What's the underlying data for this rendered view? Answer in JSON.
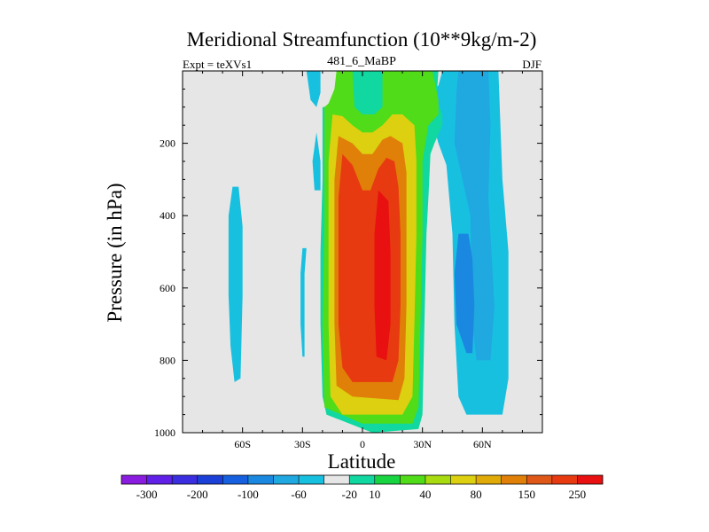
{
  "chart_data": {
    "type": "heatmap",
    "title": "Meridional Streamfunction (10**9kg/m-2)",
    "left_label": "Expt = teXVs1",
    "center_label": "481_6_MaBP",
    "right_label": "DJF",
    "xlabel": "Latitude",
    "ylabel": "Pressure (in hPa)",
    "xlim": [
      -90,
      90
    ],
    "ylim": [
      1000,
      0
    ],
    "x_ticks": [
      {
        "value": -60,
        "label": "60S"
      },
      {
        "value": -30,
        "label": "30S"
      },
      {
        "value": 0,
        "label": "0"
      },
      {
        "value": 30,
        "label": "30N"
      },
      {
        "value": 60,
        "label": "60N"
      }
    ],
    "y_ticks": [
      {
        "value": 200,
        "label": "200"
      },
      {
        "value": 400,
        "label": "400"
      },
      {
        "value": 600,
        "label": "600"
      },
      {
        "value": 800,
        "label": "800"
      },
      {
        "value": 1000,
        "label": "1000"
      }
    ],
    "colorbar": {
      "labels": [
        "-300",
        "-200",
        "-100",
        "-60",
        "-20",
        "10",
        "40",
        "80",
        "150",
        "250"
      ],
      "colors": [
        "#8a1ce0",
        "#6020e8",
        "#3a2ee0",
        "#1a40d8",
        "#1660e0",
        "#1a88e0",
        "#20a8e0",
        "#18c0e0",
        "#e6e6e6",
        "#10d8a0",
        "#18d440",
        "#50dc18",
        "#a8dc10",
        "#dcd010",
        "#e0aa08",
        "#e08008",
        "#e05818",
        "#e83a10",
        "#e81010"
      ]
    },
    "regions": [
      {
        "level": "-20",
        "polygon": [
          [
            30,
            90
          ],
          [
            35,
            140
          ],
          [
            38,
            200
          ],
          [
            42,
            260
          ],
          [
            45,
            450
          ],
          [
            46,
            700
          ],
          [
            48,
            900
          ],
          [
            52,
            950
          ],
          [
            70,
            950
          ],
          [
            73,
            850
          ],
          [
            73,
            500
          ],
          [
            70,
            300
          ],
          [
            68,
            0
          ],
          [
            40,
            0
          ],
          [
            38,
            40
          ]
        ]
      },
      {
        "level": "-60",
        "polygon": [
          [
            47,
            60
          ],
          [
            46,
            200
          ],
          [
            50,
            300
          ],
          [
            54,
            400
          ],
          [
            55,
            700
          ],
          [
            57,
            800
          ],
          [
            64,
            800
          ],
          [
            66,
            650
          ],
          [
            63,
            350
          ],
          [
            64,
            150
          ],
          [
            63,
            0
          ],
          [
            48,
            0
          ]
        ]
      },
      {
        "level": "-100",
        "polygon": [
          [
            48,
            450
          ],
          [
            46,
            560
          ],
          [
            47,
            700
          ],
          [
            52,
            780
          ],
          [
            55,
            780
          ],
          [
            56,
            650
          ],
          [
            55,
            520
          ],
          [
            53,
            450
          ]
        ]
      },
      {
        "level": "-20",
        "polygon": [
          [
            -65,
            320
          ],
          [
            -67,
            400
          ],
          [
            -67,
            620
          ],
          [
            -66,
            760
          ],
          [
            -64,
            860
          ],
          [
            -61,
            850
          ],
          [
            -60,
            620
          ],
          [
            -60,
            430
          ],
          [
            -62,
            320
          ]
        ]
      },
      {
        "level": "-20",
        "polygon": [
          [
            -23,
            170
          ],
          [
            -25,
            250
          ],
          [
            -24,
            330
          ],
          [
            -21,
            330
          ],
          [
            -21,
            250
          ]
        ]
      },
      {
        "level": "-20",
        "polygon": [
          [
            -27,
            40
          ],
          [
            -28,
            0
          ],
          [
            -21,
            0
          ],
          [
            -21,
            60
          ],
          [
            -23,
            100
          ],
          [
            -26,
            80
          ]
        ]
      },
      {
        "level": "-20",
        "polygon": [
          [
            -30,
            490
          ],
          [
            -31,
            560
          ],
          [
            -31,
            700
          ],
          [
            -30,
            790
          ],
          [
            -29,
            790
          ],
          [
            -29,
            560
          ],
          [
            -28,
            490
          ]
        ]
      },
      {
        "level": "10",
        "polygon": [
          [
            -20,
            100
          ],
          [
            -20,
            300
          ],
          [
            -21,
            500
          ],
          [
            -21,
            700
          ],
          [
            -20,
            900
          ],
          [
            -18,
            950
          ],
          [
            5,
            1000
          ],
          [
            28,
            990
          ],
          [
            30,
            950
          ],
          [
            31,
            700
          ],
          [
            32,
            450
          ],
          [
            33,
            350
          ],
          [
            34,
            230
          ],
          [
            36,
            200
          ],
          [
            40,
            150
          ],
          [
            40,
            120
          ],
          [
            37,
            80
          ],
          [
            38,
            0
          ],
          [
            -12,
            0
          ],
          [
            -14,
            60
          ],
          [
            -18,
            100
          ]
        ]
      },
      {
        "level": "40",
        "polygon": [
          [
            -13,
            0
          ],
          [
            -14,
            50
          ],
          [
            -17,
            90
          ],
          [
            -19,
            100
          ],
          [
            -19,
            450
          ],
          [
            -20,
            700
          ],
          [
            -19,
            930
          ],
          [
            0,
            975
          ],
          [
            25,
            975
          ],
          [
            28,
            930
          ],
          [
            29,
            700
          ],
          [
            30,
            450
          ],
          [
            30,
            250
          ],
          [
            33,
            150
          ],
          [
            38,
            120
          ],
          [
            38,
            80
          ],
          [
            35,
            0
          ],
          [
            10,
            0
          ],
          [
            10,
            100
          ],
          [
            6,
            120
          ],
          [
            0,
            120
          ],
          [
            -4,
            100
          ],
          [
            -5,
            0
          ]
        ]
      },
      {
        "level": "80",
        "polygon": [
          [
            -15,
            120
          ],
          [
            -17,
            250
          ],
          [
            -17,
            450
          ],
          [
            -17,
            700
          ],
          [
            -16,
            900
          ],
          [
            -10,
            950
          ],
          [
            20,
            950
          ],
          [
            25,
            900
          ],
          [
            26,
            700
          ],
          [
            27,
            450
          ],
          [
            27,
            250
          ],
          [
            26,
            150
          ],
          [
            20,
            120
          ],
          [
            15,
            120
          ],
          [
            10,
            150
          ],
          [
            5,
            170
          ],
          [
            0,
            170
          ],
          [
            -5,
            150
          ],
          [
            -10,
            125
          ]
        ]
      },
      {
        "level": "150",
        "polygon": [
          [
            -12,
            180
          ],
          [
            -14,
            300
          ],
          [
            -14,
            500
          ],
          [
            -14,
            700
          ],
          [
            -13,
            870
          ],
          [
            -5,
            900
          ],
          [
            18,
            910
          ],
          [
            21,
            850
          ],
          [
            22,
            650
          ],
          [
            22,
            450
          ],
          [
            22,
            280
          ],
          [
            20,
            200
          ],
          [
            14,
            180
          ],
          [
            10,
            190
          ],
          [
            5,
            230
          ],
          [
            0,
            230
          ],
          [
            -5,
            200
          ]
        ]
      },
      {
        "level": "250",
        "polygon": [
          [
            -10,
            230
          ],
          [
            -12,
            350
          ],
          [
            -12,
            550
          ],
          [
            -12,
            700
          ],
          [
            -10,
            820
          ],
          [
            -5,
            860
          ],
          [
            15,
            860
          ],
          [
            18,
            800
          ],
          [
            19,
            650
          ],
          [
            19,
            450
          ],
          [
            18,
            320
          ],
          [
            16,
            250
          ],
          [
            12,
            240
          ],
          [
            8,
            270
          ],
          [
            4,
            330
          ],
          [
            0,
            330
          ],
          [
            -5,
            260
          ]
        ]
      },
      {
        "level": "250h",
        "polygon": [
          [
            8,
            330
          ],
          [
            6,
            450
          ],
          [
            6,
            650
          ],
          [
            7,
            790
          ],
          [
            12,
            800
          ],
          [
            14,
            700
          ],
          [
            14,
            500
          ],
          [
            13,
            360
          ]
        ]
      }
    ]
  }
}
